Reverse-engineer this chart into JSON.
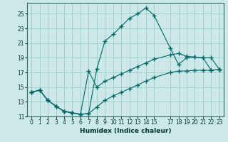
{
  "xlabel": "Humidex (Indice chaleur)",
  "bg_color": "#cce8e8",
  "grid_color": "#99cccc",
  "line_color": "#006666",
  "xlim": [
    -0.5,
    23.5
  ],
  "ylim": [
    11,
    26.5
  ],
  "yticks": [
    11,
    13,
    15,
    17,
    19,
    21,
    23,
    25
  ],
  "xticks": [
    0,
    1,
    2,
    3,
    4,
    5,
    6,
    7,
    8,
    9,
    10,
    11,
    12,
    13,
    14,
    15,
    17,
    18,
    19,
    20,
    21,
    22,
    23
  ],
  "line1_x": [
    0,
    1,
    2,
    3,
    4,
    5,
    6,
    7,
    8,
    9,
    10,
    11,
    12,
    13,
    14,
    15,
    17,
    18,
    19,
    20,
    21,
    22,
    23
  ],
  "line1_y": [
    14.3,
    14.6,
    13.2,
    12.4,
    11.7,
    11.5,
    11.3,
    11.4,
    17.5,
    21.3,
    22.2,
    23.3,
    24.4,
    25.0,
    25.8,
    24.8,
    20.3,
    18.1,
    19.0,
    19.1,
    19.0,
    19.0,
    17.4
  ],
  "line2_x": [
    0,
    1,
    2,
    3,
    4,
    5,
    6,
    7,
    8,
    9,
    10,
    11,
    12,
    13,
    14,
    15,
    17,
    18,
    19,
    20,
    21,
    22,
    23
  ],
  "line2_y": [
    14.3,
    14.6,
    13.2,
    12.4,
    11.7,
    11.5,
    11.3,
    17.2,
    15.0,
    15.8,
    16.3,
    16.8,
    17.3,
    17.8,
    18.3,
    18.8,
    19.4,
    19.6,
    19.2,
    19.1,
    19.0,
    17.3,
    17.4
  ],
  "line3_x": [
    0,
    1,
    2,
    3,
    4,
    5,
    6,
    7,
    8,
    9,
    10,
    11,
    12,
    13,
    14,
    15,
    17,
    18,
    19,
    20,
    21,
    22,
    23
  ],
  "line3_y": [
    14.3,
    14.6,
    13.2,
    12.4,
    11.7,
    11.5,
    11.3,
    11.4,
    12.3,
    13.2,
    13.8,
    14.3,
    14.8,
    15.3,
    15.8,
    16.3,
    17.0,
    17.2,
    17.2,
    17.3,
    17.3,
    17.3,
    17.4
  ]
}
